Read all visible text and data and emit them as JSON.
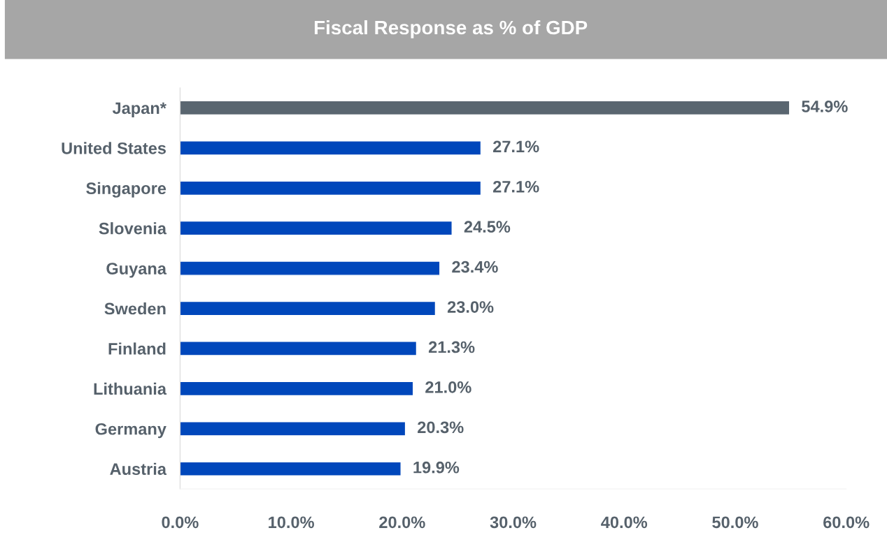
{
  "chart_data": {
    "type": "bar",
    "orientation": "horizontal",
    "title": "Fiscal Response as % of GDP",
    "categories": [
      "Japan*",
      "United States",
      "Singapore",
      "Slovenia",
      "Guyana",
      "Sweden",
      "Finland",
      "Lithuania",
      "Germany",
      "Austria"
    ],
    "values": [
      54.9,
      27.1,
      27.1,
      24.5,
      23.4,
      23.0,
      21.3,
      21.0,
      20.3,
      19.9
    ],
    "colors": [
      "#5a6670",
      "#0047bb",
      "#0047bb",
      "#0047bb",
      "#0047bb",
      "#0047bb",
      "#0047bb",
      "#0047bb",
      "#0047bb",
      "#0047bb"
    ],
    "value_labels": [
      "54.9%",
      "27.1%",
      "27.1%",
      "24.5%",
      "23.4%",
      "23.0%",
      "21.3%",
      "21.0%",
      "20.3%",
      "19.9%"
    ],
    "xlim": [
      0,
      60
    ],
    "xticks": [
      {
        "value": 0,
        "label": "0.0%"
      },
      {
        "value": 10,
        "label": "10.0%"
      },
      {
        "value": 20,
        "label": "20.0%"
      },
      {
        "value": 30,
        "label": "30.0%"
      },
      {
        "value": 40,
        "label": "40.0%"
      },
      {
        "value": 50,
        "label": "50.0%"
      },
      {
        "value": 60,
        "label": "60.0%"
      }
    ],
    "grid": false,
    "legend": false
  }
}
